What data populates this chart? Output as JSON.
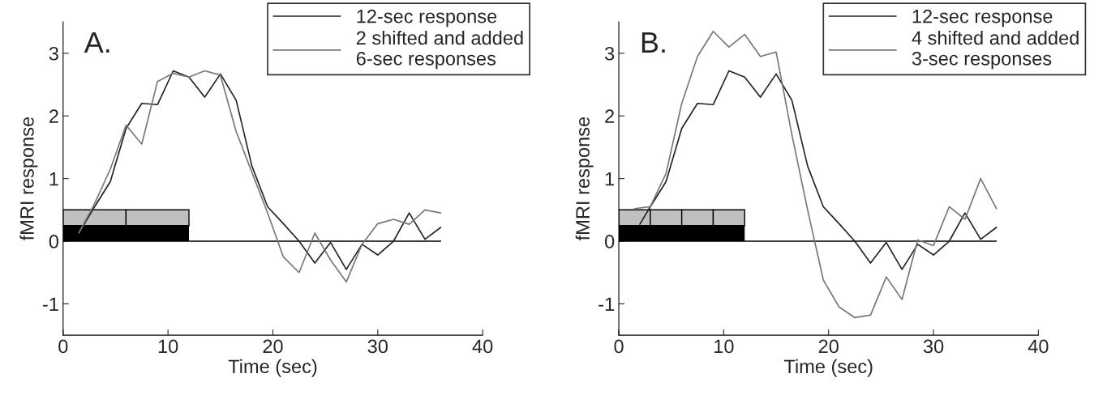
{
  "chart_data": [
    {
      "type": "line",
      "title": "A.",
      "xlabel": "Time (sec)",
      "ylabel": "fMRI response",
      "xlim": [
        0,
        40
      ],
      "xticks": [
        0,
        10,
        20,
        30,
        40
      ],
      "ylim": [
        -1.5,
        3.5
      ],
      "yticks": [
        -1,
        0,
        1,
        2,
        3
      ],
      "grid": false,
      "legend": "top right",
      "series": [
        {
          "type": "bar",
          "color": "#c0c0c0",
          "x": [
            3,
            9
          ],
          "base": [
            0.25,
            0.25
          ],
          "values": [
            0.25,
            0.25
          ]
        },
        {
          "type": "area",
          "color": "#000000",
          "x": [
            0,
            12
          ],
          "values": [
            0.25,
            0.25
          ]
        },
        {
          "type": "line",
          "color": "#000000",
          "x": [
            0,
            36
          ],
          "values": [
            0,
            0
          ]
        },
        {
          "name": "12-sec response",
          "color": "#222222",
          "x": [
            1.5,
            3,
            4.5,
            6,
            7.5,
            9,
            10.5,
            12,
            13.5,
            15,
            16.5,
            18,
            19.5,
            21,
            22.5,
            24,
            25.5,
            27,
            28.5,
            30,
            31.5,
            33,
            34.5,
            36
          ],
          "values": [
            0.13,
            0.55,
            0.95,
            1.8,
            2.2,
            2.18,
            2.72,
            2.62,
            2.3,
            2.67,
            2.25,
            1.2,
            0.55,
            0.28,
            0,
            -0.35,
            -0.02,
            -0.45,
            -0.05,
            -0.22,
            0,
            0.45,
            0.03,
            0.22
          ]
        },
        {
          "name": "2 shifted and added\n6-sec responses",
          "color": "#777777",
          "x": [
            1.5,
            3,
            4.5,
            6,
            7.5,
            9,
            10.5,
            12,
            13.5,
            15,
            16.5,
            18,
            19.5,
            21,
            22.5,
            24,
            25.5,
            27,
            28.5,
            30,
            31.5,
            33,
            34.5,
            36
          ],
          "values": [
            0.13,
            0.6,
            1.15,
            1.85,
            1.55,
            2.55,
            2.68,
            2.62,
            2.72,
            2.65,
            1.75,
            1.1,
            0.45,
            -0.25,
            -0.5,
            0.13,
            -0.3,
            -0.65,
            -0.05,
            0.28,
            0.35,
            0.27,
            0.5,
            0.45
          ]
        }
      ]
    },
    {
      "type": "line",
      "title": "B.",
      "xlabel": "Time (sec)",
      "ylabel": "fMRI response",
      "xlim": [
        0,
        40
      ],
      "xticks": [
        0,
        10,
        20,
        30,
        40
      ],
      "ylim": [
        -1.5,
        3.5
      ],
      "yticks": [
        -1,
        0,
        1,
        2,
        3
      ],
      "grid": false,
      "legend": "top right",
      "series": [
        {
          "type": "bar",
          "color": "#c0c0c0",
          "x": [
            1.5,
            4.5,
            7.5,
            10.5
          ],
          "base": [
            0.25,
            0.25,
            0.25,
            0.25
          ],
          "values": [
            0.25,
            0.25,
            0.25,
            0.25
          ]
        },
        {
          "type": "area",
          "color": "#000000",
          "x": [
            0,
            12
          ],
          "values": [
            0.25,
            0.25
          ]
        },
        {
          "type": "line",
          "color": "#000000",
          "x": [
            0,
            36
          ],
          "values": [
            0,
            0
          ]
        },
        {
          "name": "12-sec response",
          "color": "#222222",
          "x": [
            2,
            3,
            4.5,
            6,
            7.5,
            9,
            10.5,
            12,
            13.5,
            15,
            16.5,
            18,
            19.5,
            21,
            22.5,
            24,
            25.5,
            27,
            28.5,
            30,
            31.5,
            33,
            34.5,
            36
          ],
          "values": [
            0.27,
            0.55,
            0.95,
            1.8,
            2.2,
            2.18,
            2.72,
            2.62,
            2.3,
            2.67,
            2.25,
            1.2,
            0.55,
            0.28,
            0,
            -0.35,
            -0.02,
            -0.45,
            -0.05,
            -0.22,
            0,
            0.45,
            0.03,
            0.22
          ]
        },
        {
          "name": "4 shifted and added\n3-sec responses",
          "color": "#777777",
          "x": [
            1.5,
            3,
            4.5,
            6,
            7.5,
            9,
            10.5,
            12,
            13.5,
            15,
            16.5,
            18,
            19.5,
            21,
            22.5,
            24,
            25.5,
            27,
            28.5,
            30,
            31.5,
            33,
            34.5,
            36
          ],
          "values": [
            0.52,
            0.55,
            1.08,
            2.2,
            2.95,
            3.35,
            3.1,
            3.3,
            2.95,
            3.02,
            1.7,
            0.5,
            -0.62,
            -1.05,
            -1.22,
            -1.18,
            -0.57,
            -0.93,
            0.02,
            -0.07,
            0.55,
            0.35,
            1.0,
            0.52
          ]
        }
      ]
    }
  ]
}
